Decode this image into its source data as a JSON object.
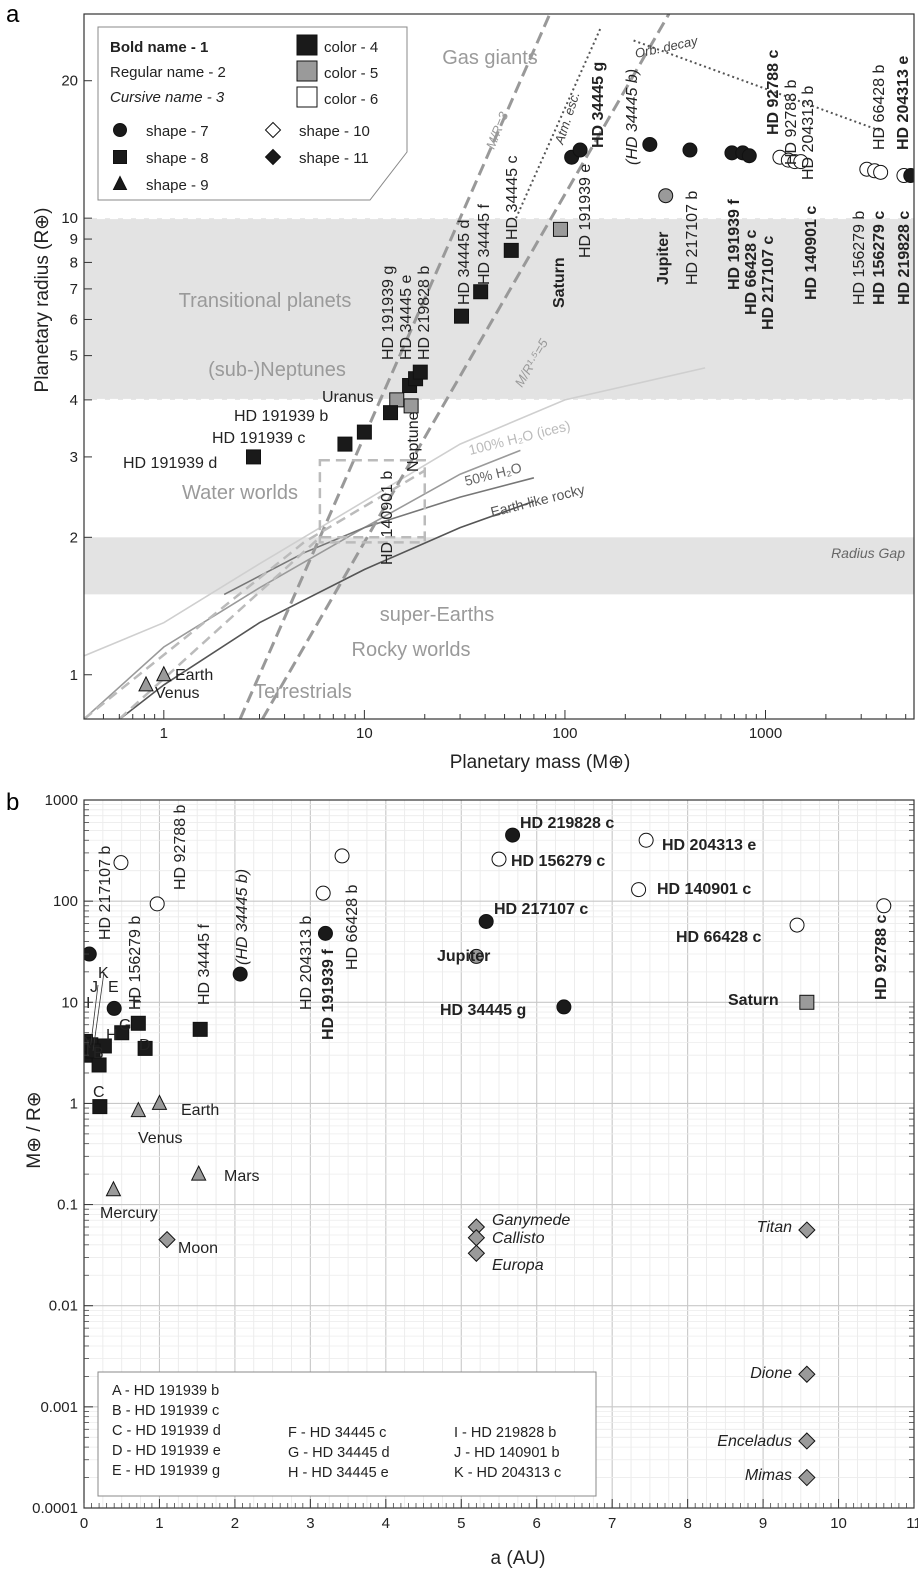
{
  "panel_labels": [
    "a",
    "b"
  ],
  "legend_a": {
    "name_styles": [
      {
        "text": "Bold name - 1",
        "style": "bold"
      },
      {
        "text": "Regular name - 2",
        "style": "regular"
      },
      {
        "text": "Cursive name - 3",
        "style": "italic"
      }
    ],
    "colors": [
      {
        "text": "color - 4",
        "fill": "#1a1a1a"
      },
      {
        "text": "color - 5",
        "fill": "#9a9a9a"
      },
      {
        "text": "color - 6",
        "fill": "#ffffff"
      }
    ],
    "shapes": [
      {
        "text": "shape - 7",
        "marker": "circle",
        "fill": "#1a1a1a"
      },
      {
        "text": "shape - 8",
        "marker": "square",
        "fill": "#1a1a1a"
      },
      {
        "text": "shape - 9",
        "marker": "triangle",
        "fill": "#1a1a1a"
      },
      {
        "text": "shape - 10",
        "marker": "diamond",
        "fill": "#ffffff"
      },
      {
        "text": "shape - 11",
        "marker": "diamond",
        "fill": "#1a1a1a"
      }
    ]
  },
  "legend_b": {
    "entries": [
      "A - HD 191939 b",
      "B - HD 191939 c",
      "C - HD 191939 d",
      "D - HD 191939 e",
      "E - HD 191939 g",
      "F - HD 34445 c",
      "G - HD 34445 d",
      "H - HD 34445 e",
      "I - HD 219828 b",
      "J - HD 140901 b",
      "K - HD 204313 c"
    ]
  },
  "colors": {
    "dark": "#1a1a1a",
    "gray": "#9a9a9a",
    "white": "#ffffff",
    "band": "#e3e3e3",
    "band_label": "#9a9a9a",
    "curve": "#777777"
  },
  "chart_data": [
    {
      "type": "scatter",
      "panel": "a",
      "xlabel": "Planetary mass (M⊕)",
      "ylabel": "Planetary radius (R⊕)",
      "xscale": "log",
      "yscale": "log",
      "xlim": [
        0.4,
        5500
      ],
      "ylim": [
        0.8,
        28
      ],
      "xticks": [
        1,
        10,
        100,
        1000
      ],
      "yticks": [
        1,
        2,
        3,
        4,
        5,
        6,
        7,
        8,
        9,
        10,
        20
      ],
      "regions": [
        {
          "name": "Transitional planets",
          "y": [
            4,
            10
          ]
        },
        {
          "name": "Radius Gap",
          "y": [
            1.5,
            2.0
          ]
        }
      ],
      "region_labels": [
        "Gas giants",
        "Transitional planets",
        "(sub-)Neptunes",
        "Water worlds",
        "super-Earths",
        "Rocky worlds",
        "Terrestrials"
      ],
      "curve_labels": [
        "100% H₂O (ices)",
        "50% H₂O",
        "Earth-like rocky"
      ],
      "line_labels": [
        "M/R=3",
        "M/R¹·⁵=5",
        "Atm. esc.",
        "Orb. decay"
      ],
      "points": [
        {
          "name": "Earth",
          "x": 1.0,
          "y": 1.0,
          "marker": "triangle",
          "color": "gray",
          "style": "regular"
        },
        {
          "name": "Venus",
          "x": 0.815,
          "y": 0.95,
          "marker": "triangle",
          "color": "gray",
          "style": "regular"
        },
        {
          "name": "Uranus",
          "x": 14.5,
          "y": 4.0,
          "marker": "square",
          "color": "gray",
          "style": "regular"
        },
        {
          "name": "Neptune",
          "x": 17.1,
          "y": 3.88,
          "marker": "square",
          "color": "gray",
          "style": "regular"
        },
        {
          "name": "Saturn",
          "x": 95,
          "y": 9.45,
          "marker": "square",
          "color": "gray",
          "style": "bold"
        },
        {
          "name": "Jupiter",
          "x": 318,
          "y": 11.2,
          "marker": "circle",
          "color": "gray",
          "style": "bold"
        },
        {
          "name": "HD 191939 d",
          "x": 2.8,
          "y": 3.0,
          "marker": "square",
          "color": "dark",
          "style": "regular"
        },
        {
          "name": "HD 191939 c",
          "x": 8.0,
          "y": 3.2,
          "marker": "square",
          "color": "dark",
          "style": "regular"
        },
        {
          "name": "HD 191939 b",
          "x": 10.0,
          "y": 3.4,
          "marker": "square",
          "color": "dark",
          "style": "regular"
        },
        {
          "name": "HD 140901 b",
          "x": 13.5,
          "y": 3.75,
          "marker": "square",
          "color": "dark",
          "style": "regular"
        },
        {
          "name": "HD 191939 g",
          "x": 16.8,
          "y": 4.3,
          "marker": "square",
          "color": "dark",
          "style": "regular"
        },
        {
          "name": "HD 34445 e",
          "x": 18.0,
          "y": 4.45,
          "marker": "square",
          "color": "dark",
          "style": "regular"
        },
        {
          "name": "HD 219828 b",
          "x": 19.0,
          "y": 4.6,
          "marker": "square",
          "color": "dark",
          "style": "regular"
        },
        {
          "name": "HD 34445 d",
          "x": 30.5,
          "y": 6.1,
          "marker": "square",
          "color": "dark",
          "style": "regular"
        },
        {
          "name": "HD 34445 f",
          "x": 38.0,
          "y": 6.9,
          "marker": "square",
          "color": "dark",
          "style": "regular"
        },
        {
          "name": "HD 34445 c",
          "x": 54,
          "y": 8.5,
          "marker": "square",
          "color": "dark",
          "style": "regular"
        },
        {
          "name": "HD 191939 e",
          "x": 108,
          "y": 13.6,
          "marker": "circle",
          "color": "dark",
          "style": "regular"
        },
        {
          "name": "HD 34445 g",
          "x": 119,
          "y": 14.1,
          "marker": "circle",
          "color": "dark",
          "style": "bold"
        },
        {
          "name": "(HD 34445 b)",
          "x": 265,
          "y": 14.5,
          "marker": "circle",
          "color": "dark",
          "style": "italic"
        },
        {
          "name": "HD 217107 b",
          "x": 420,
          "y": 14.1,
          "marker": "circle",
          "color": "dark",
          "style": "regular"
        },
        {
          "name": "HD 191939 f",
          "x": 680,
          "y": 13.9,
          "marker": "circle",
          "color": "dark",
          "style": "bold"
        },
        {
          "name": "HD 66428 c",
          "x": 770,
          "y": 13.9,
          "marker": "circle",
          "color": "dark",
          "style": "bold"
        },
        {
          "name": "HD 217107 c",
          "x": 830,
          "y": 13.7,
          "marker": "circle",
          "color": "dark",
          "style": "bold"
        },
        {
          "name": "HD 92788 c",
          "x": 1180,
          "y": 13.6,
          "marker": "circle",
          "color": "white",
          "style": "bold"
        },
        {
          "name": "HD 92788 b",
          "x": 1300,
          "y": 13.4,
          "marker": "circle",
          "color": "white",
          "style": "regular"
        },
        {
          "name": "HD 140901 c",
          "x": 1400,
          "y": 13.3,
          "marker": "circle",
          "color": "white",
          "style": "bold"
        },
        {
          "name": "HD 204313 b",
          "x": 1500,
          "y": 13.3,
          "marker": "circle",
          "color": "white",
          "style": "regular"
        },
        {
          "name": "HD 156279 b",
          "x": 3200,
          "y": 12.8,
          "marker": "circle",
          "color": "white",
          "style": "regular"
        },
        {
          "name": "HD 66428 b",
          "x": 3500,
          "y": 12.7,
          "marker": "circle",
          "color": "white",
          "style": "regular"
        },
        {
          "name": "HD 156279 c",
          "x": 3750,
          "y": 12.6,
          "marker": "circle",
          "color": "white",
          "style": "bold"
        },
        {
          "name": "HD 204313 e",
          "x": 4900,
          "y": 12.4,
          "marker": "circle",
          "color": "white",
          "style": "bold"
        },
        {
          "name": "HD 219828 c",
          "x": 5300,
          "y": 12.4,
          "marker": "circle",
          "color": "dark",
          "style": "bold"
        }
      ]
    },
    {
      "type": "scatter",
      "panel": "b",
      "xlabel": "a (AU)",
      "ylabel": "M⊕ / R⊕",
      "xscale": "linear",
      "yscale": "log",
      "xlim": [
        0,
        11
      ],
      "ylim": [
        0.0001,
        1000
      ],
      "xticks": [
        0,
        1,
        2,
        3,
        4,
        5,
        6,
        7,
        8,
        9,
        10,
        11
      ],
      "yticks": [
        0.0001,
        0.001,
        0.01,
        0.1,
        1,
        10,
        100,
        1000
      ],
      "ytick_labels": [
        "0.0001",
        "0.001",
        "0.01",
        "0.1",
        "1",
        "10",
        "100",
        "1000"
      ],
      "grid": true,
      "points": [
        {
          "name": "HD 219828 c",
          "x": 5.68,
          "y": 450,
          "marker": "circle",
          "color": "dark",
          "style": "bold"
        },
        {
          "name": "HD 204313 e",
          "x": 7.45,
          "y": 400,
          "marker": "circle",
          "color": "white",
          "style": "bold"
        },
        {
          "name": "HD 156279 c",
          "x": 5.5,
          "y": 260,
          "marker": "circle",
          "color": "white",
          "style": "bold"
        },
        {
          "name": "HD 140901 c",
          "x": 7.35,
          "y": 130,
          "marker": "circle",
          "color": "white",
          "style": "bold"
        },
        {
          "name": "HD 217107 c",
          "x": 5.33,
          "y": 63,
          "marker": "circle",
          "color": "dark",
          "style": "bold"
        },
        {
          "name": "HD 66428 c",
          "x": 9.45,
          "y": 58,
          "marker": "circle",
          "color": "white",
          "style": "bold"
        },
        {
          "name": "HD 92788 c",
          "x": 10.6,
          "y": 90,
          "marker": "circle",
          "color": "white",
          "style": "bold"
        },
        {
          "name": "Jupiter",
          "x": 5.2,
          "y": 28.4,
          "marker": "circle",
          "color": "gray",
          "style": "bold"
        },
        {
          "name": "HD 34445 g",
          "x": 6.36,
          "y": 9.0,
          "marker": "circle",
          "color": "dark",
          "style": "bold"
        },
        {
          "name": "Saturn",
          "x": 9.58,
          "y": 10.0,
          "marker": "square",
          "color": "gray",
          "style": "bold"
        },
        {
          "name": "HD 217107 b",
          "x": 0.07,
          "y": 30,
          "marker": "circle",
          "color": "dark",
          "style": "regular"
        },
        {
          "name": "HD 156279 b",
          "x": 0.49,
          "y": 240,
          "marker": "circle",
          "color": "white",
          "style": "regular"
        },
        {
          "name": "HD 92788 b",
          "x": 0.97,
          "y": 94,
          "marker": "circle",
          "color": "white",
          "style": "regular"
        },
        {
          "name": "HD 34445 f",
          "x": 1.54,
          "y": 5.4,
          "marker": "square",
          "color": "dark",
          "style": "regular"
        },
        {
          "name": "(HD 34445 b)",
          "x": 2.07,
          "y": 19,
          "marker": "circle",
          "color": "dark",
          "style": "italic"
        },
        {
          "name": "HD 204313 b",
          "x": 3.17,
          "y": 120,
          "marker": "circle",
          "color": "white",
          "style": "regular"
        },
        {
          "name": "HD 191939 f",
          "x": 3.2,
          "y": 48,
          "marker": "circle",
          "color": "dark",
          "style": "bold"
        },
        {
          "name": "HD 66428 b",
          "x": 3.42,
          "y": 280,
          "marker": "circle",
          "color": "white",
          "style": "regular"
        },
        {
          "name": "A",
          "x": 0.05,
          "y": 3.0,
          "marker": "square",
          "color": "dark",
          "style": "regular"
        },
        {
          "name": "B",
          "x": 0.2,
          "y": 2.4,
          "marker": "square",
          "color": "dark",
          "style": "regular"
        },
        {
          "name": "C",
          "x": 0.21,
          "y": 0.93,
          "marker": "square",
          "color": "dark",
          "style": "regular"
        },
        {
          "name": "D",
          "x": 0.81,
          "y": 3.5,
          "marker": "square",
          "color": "dark",
          "style": "regular"
        },
        {
          "name": "E",
          "x": 0.4,
          "y": 8.7,
          "marker": "circle",
          "color": "dark",
          "style": "regular"
        },
        {
          "name": "F",
          "x": 0.72,
          "y": 6.2,
          "marker": "square",
          "color": "dark",
          "style": "regular"
        },
        {
          "name": "G",
          "x": 0.27,
          "y": 3.7,
          "marker": "square",
          "color": "dark",
          "style": "regular"
        },
        {
          "name": "H",
          "x": 0.5,
          "y": 5.0,
          "marker": "square",
          "color": "dark",
          "style": "regular"
        },
        {
          "name": "I",
          "x": 0.02,
          "y": 4.1,
          "marker": "square",
          "color": "dark",
          "style": "regular"
        },
        {
          "name": "J",
          "x": 0.09,
          "y": 3.8,
          "marker": "square",
          "color": "dark",
          "style": "regular"
        },
        {
          "name": "K",
          "x": 0.12,
          "y": 3.3,
          "marker": "square",
          "color": "dark",
          "style": "regular"
        },
        {
          "name": "Earth",
          "x": 1.0,
          "y": 1.0,
          "marker": "triangle",
          "color": "gray",
          "style": "regular"
        },
        {
          "name": "Venus",
          "x": 0.72,
          "y": 0.85,
          "marker": "triangle",
          "color": "gray",
          "style": "regular"
        },
        {
          "name": "Mars",
          "x": 1.52,
          "y": 0.2,
          "marker": "triangle",
          "color": "gray",
          "style": "regular"
        },
        {
          "name": "Mercury",
          "x": 0.39,
          "y": 0.14,
          "marker": "triangle",
          "color": "gray",
          "style": "regular"
        },
        {
          "name": "Moon",
          "x": 1.1,
          "y": 0.045,
          "marker": "diamond",
          "color": "gray",
          "style": "regular"
        },
        {
          "name": "Ganymede",
          "x": 5.2,
          "y": 0.06,
          "marker": "diamond",
          "color": "gray",
          "style": "italic"
        },
        {
          "name": "Callisto",
          "x": 5.2,
          "y": 0.047,
          "marker": "diamond",
          "color": "gray",
          "style": "italic"
        },
        {
          "name": "Europa",
          "x": 5.2,
          "y": 0.033,
          "marker": "diamond",
          "color": "gray",
          "style": "italic"
        },
        {
          "name": "Titan",
          "x": 9.58,
          "y": 0.056,
          "marker": "diamond",
          "color": "gray",
          "style": "italic"
        },
        {
          "name": "Dione",
          "x": 9.58,
          "y": 0.0021,
          "marker": "diamond",
          "color": "gray",
          "style": "italic"
        },
        {
          "name": "Enceladus",
          "x": 9.58,
          "y": 0.00046,
          "marker": "diamond",
          "color": "gray",
          "style": "italic"
        },
        {
          "name": "Mimas",
          "x": 9.58,
          "y": 0.0002,
          "marker": "diamond",
          "color": "gray",
          "style": "italic"
        }
      ]
    }
  ]
}
